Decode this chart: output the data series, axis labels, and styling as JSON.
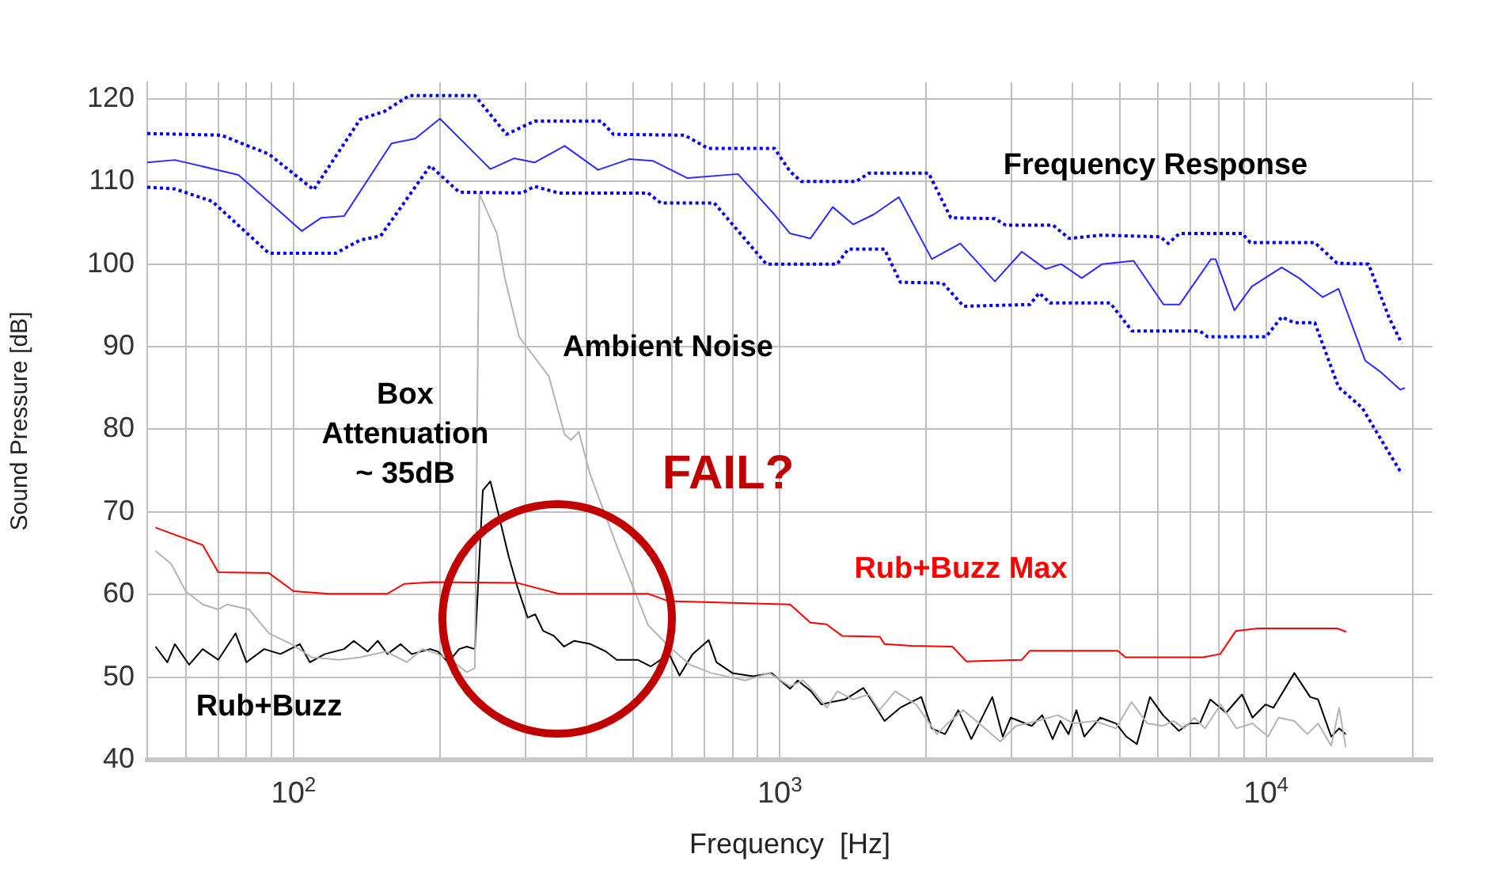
{
  "chart_data": {
    "type": "line",
    "xlabel": "Frequency  [Hz]",
    "ylabel": "Sound Pressure [dB]",
    "log": "x",
    "grid": true,
    "legend": false,
    "marker": "none",
    "xlim": [
      50,
      22000
    ],
    "ylim": [
      40,
      122
    ],
    "xticks": [
      {
        "value": 60,
        "label": null
      },
      {
        "value": 70,
        "label": null
      },
      {
        "value": 80,
        "label": null
      },
      {
        "value": 90,
        "label": null
      },
      {
        "value": 100,
        "label": "10$^{2}$"
      },
      {
        "value": 200,
        "label": null
      },
      {
        "value": 300,
        "label": null
      },
      {
        "value": 400,
        "label": null
      },
      {
        "value": 500,
        "label": null
      },
      {
        "value": 600,
        "label": null
      },
      {
        "value": 700,
        "label": null
      },
      {
        "value": 800,
        "label": null
      },
      {
        "value": 900,
        "label": null
      },
      {
        "value": 1000,
        "label": "10$^{3}$"
      },
      {
        "value": 2000,
        "label": null
      },
      {
        "value": 3000,
        "label": null
      },
      {
        "value": 4000,
        "label": null
      },
      {
        "value": 5000,
        "label": null
      },
      {
        "value": 6000,
        "label": null
      },
      {
        "value": 7000,
        "label": null
      },
      {
        "value": 8000,
        "label": null
      },
      {
        "value": 9000,
        "label": null
      },
      {
        "value": 10000,
        "label": "10$^{4}$"
      },
      {
        "value": 20000,
        "label": null
      }
    ],
    "yticks": [
      40,
      50,
      60,
      70,
      80,
      90,
      100,
      110,
      120
    ],
    "series": [
      {
        "color": "#0000ff",
        "line_style": "dotted",
        "x": [
          50,
          71,
          89,
          110,
          137,
          154,
          173,
          236,
          274,
          313,
          429,
          455,
          637,
          712,
          975,
          1050,
          1107,
          1436,
          1525,
          2024,
          2247,
          2770,
          2917,
          3650,
          3935,
          4571,
          6063,
          6294,
          6637,
          8936,
          9282,
          12600,
          14000,
          16250,
          17910,
          19020
        ],
        "values": [
          115.8,
          115.6,
          113.3,
          109,
          117.5,
          118.5,
          120.4,
          120.4,
          115.7,
          117.3,
          117.3,
          115.7,
          115.6,
          114,
          114,
          111.2,
          110,
          110,
          111,
          111,
          105.6,
          105.5,
          104.7,
          104.7,
          103.1,
          103.5,
          103.3,
          102.5,
          103.7,
          103.7,
          102.6,
          102.6,
          100.1,
          100,
          93.5,
          90.4
        ]
      },
      {
        "color": "#2b2bff",
        "line_style": "solid",
        "x": [
          50,
          57,
          77,
          104,
          114,
          127,
          159,
          178,
          200,
          254,
          284,
          313,
          361,
          423,
          490,
          548,
          646,
          820,
          975,
          1050,
          1156,
          1285,
          1415,
          1560,
          1757,
          2054,
          2351,
          2770,
          3146,
          3519,
          3790,
          4178,
          4604,
          5342,
          6155,
          6637,
          7709,
          7874,
          8610,
          9354,
          10770,
          11690,
          13080,
          14100,
          16000,
          17240,
          18870,
          19290
        ],
        "values": [
          112.3,
          112.6,
          110.8,
          104,
          105.6,
          105.8,
          114.6,
          115.2,
          117.6,
          111.5,
          112.8,
          112.3,
          114.3,
          111.4,
          112.7,
          112.5,
          110.4,
          110.9,
          106,
          103.7,
          103.1,
          106.9,
          104.8,
          106,
          108.1,
          100.6,
          102.5,
          97.9,
          101.5,
          99.4,
          100,
          98.3,
          100,
          100.4,
          95.1,
          95.1,
          100.6,
          100.6,
          94.4,
          97.3,
          99.6,
          98.3,
          96,
          97,
          88.3,
          86.9,
          84.8,
          85
        ]
      },
      {
        "color": "#0000ff",
        "line_style": "dotted",
        "x": [
          50,
          57,
          68,
          89,
          122,
          137,
          151,
          191,
          219,
          295,
          313,
          351,
          536,
          569,
          733,
          938,
          1312,
          1383,
          1642,
          1770,
          2163,
          2387,
          3268,
          3416,
          3595,
          4780,
          5302,
          7308,
          7588,
          10000,
          10770,
          11430,
          12600,
          14100,
          15770,
          17510,
          19020
        ],
        "values": [
          109.3,
          109.1,
          107.6,
          101.3,
          101.3,
          102.9,
          103.4,
          111.9,
          108.7,
          108.6,
          109.4,
          108.6,
          108.6,
          107.4,
          107.4,
          100,
          100,
          101.8,
          101.8,
          97.8,
          97.7,
          94.9,
          95.1,
          96.5,
          95.3,
          95.3,
          91.9,
          91.9,
          91.2,
          91.2,
          93.6,
          92.9,
          92.9,
          85.1,
          82.6,
          78.1,
          74.6
        ]
      },
      {
        "name": "Rub+Buzz Max",
        "color": "#ff0000",
        "line_style": "solid",
        "x": [
          52,
          65,
          70,
          89,
          100,
          118,
          156,
          169,
          193,
          289,
          351,
          536,
          591,
          1050,
          1156,
          1247,
          1343,
          1606,
          1642,
          1866,
          2265,
          2421,
          3146,
          3268,
          4955,
          5140,
          7413,
          8050,
          8670,
          9630,
          14000,
          14620
        ],
        "values": [
          68.1,
          66,
          62.7,
          62.6,
          60.4,
          60.1,
          60.1,
          61.3,
          61.5,
          61.4,
          60.1,
          60.1,
          59.2,
          58.8,
          56.6,
          56.4,
          55,
          54.9,
          54,
          53.8,
          53.7,
          51.9,
          52.1,
          53.2,
          53.2,
          52.4,
          52.4,
          52.8,
          55.6,
          55.9,
          55.9,
          55.5
        ]
      },
      {
        "color": "#b4b4b4",
        "line_style": "solid",
        "x": [
          52,
          56,
          60,
          65,
          70,
          73,
          81,
          89,
          99,
          109,
          124,
          137,
          155,
          171,
          184,
          198,
          214,
          227,
          236,
          241,
          262,
          272,
          291,
          335,
          361,
          372,
          386,
          407,
          462,
          536,
          592,
          654,
          723,
          849,
          951,
          1050,
          1117,
          1189,
          1249,
          1313,
          1415,
          1525,
          1602,
          1727,
          1907,
          2106,
          2214,
          2385,
          2570,
          2839,
          3060,
          3380,
          3733,
          4023,
          4443,
          4914,
          5287,
          5698,
          6139,
          6452,
          6780,
          7125,
          7488,
          8069,
          8696,
          9378,
          10096,
          10617,
          11436,
          12159,
          12795,
          13620,
          14140,
          14590
        ],
        "values": [
          65.3,
          63.7,
          60.4,
          58.8,
          58.2,
          58.8,
          58.2,
          55.3,
          54,
          52.4,
          52.1,
          52.4,
          53.1,
          51.8,
          53.4,
          52.8,
          51.8,
          50.6,
          51.1,
          108.5,
          103.7,
          98.3,
          91.2,
          86.4,
          79.4,
          78.7,
          79.7,
          74.6,
          65.9,
          56.3,
          53.7,
          51.5,
          50.5,
          49.6,
          50.5,
          48.9,
          49.6,
          47.9,
          46.3,
          48.3,
          47.3,
          47.9,
          46,
          48.3,
          46.7,
          43.1,
          44.4,
          46,
          44.4,
          42.2,
          44.1,
          44.7,
          45.4,
          44.4,
          44.7,
          43.8,
          47,
          44.4,
          44.1,
          44.7,
          43.8,
          45.1,
          43.8,
          46.7,
          43.8,
          44.4,
          42.8,
          45.1,
          44.7,
          43.1,
          44.4,
          41.7,
          46.3,
          41.5
        ]
      },
      {
        "name": "Rub+Buzz",
        "color": "#000000",
        "line_style": "solid",
        "x": [
          52,
          55,
          57,
          61,
          65,
          70,
          76,
          80,
          87,
          94,
          103,
          108,
          116,
          127,
          133,
          142,
          149,
          156,
          166,
          175,
          191,
          198,
          208,
          219,
          227,
          236,
          245,
          254,
          267,
          277,
          288,
          303,
          314,
          326,
          343,
          360,
          378,
          408,
          439,
          462,
          510,
          543,
          592,
          622,
          662,
          714,
          741,
          799,
          882,
          962,
          1050,
          1089,
          1159,
          1218,
          1280,
          1362,
          1486,
          1563,
          1642,
          1769,
          1954,
          2054,
          2187,
          2328,
          2477,
          2736,
          2874,
          2985,
          3297,
          3465,
          3641,
          3778,
          3925,
          4074,
          4227,
          4560,
          4914,
          5163,
          5424,
          5771,
          6139,
          6620,
          6956,
          7308,
          7679,
          8279,
          8926,
          9378,
          9977,
          10355,
          11436,
          12323,
          12795,
          13620,
          14140,
          14590
        ],
        "values": [
          53.7,
          51.8,
          54,
          51.5,
          53.4,
          52.1,
          55.3,
          51.8,
          53.4,
          52.8,
          54,
          51.8,
          52.8,
          53.4,
          54.4,
          53.1,
          54.4,
          52.8,
          54,
          52.8,
          53.4,
          53.1,
          51.8,
          53.4,
          53.7,
          53.4,
          72.6,
          73.7,
          68.5,
          64.6,
          61.1,
          57.2,
          57.6,
          55.6,
          55,
          53.7,
          54.4,
          54,
          53.1,
          52.1,
          52.1,
          51.3,
          52.8,
          50.2,
          52.8,
          54.5,
          51.8,
          50.5,
          50.1,
          50.5,
          48.6,
          49.6,
          48.3,
          46.7,
          47,
          47.3,
          48.7,
          46.7,
          44.7,
          46.3,
          47.6,
          43.8,
          43.1,
          46,
          42.5,
          47.6,
          42.8,
          45.1,
          44.1,
          45.4,
          42.5,
          44.7,
          43.1,
          46,
          42.8,
          45.1,
          44.4,
          42.8,
          41.9,
          47.6,
          45.4,
          43.5,
          44.4,
          44.4,
          47.3,
          45.7,
          47.9,
          45.1,
          46.7,
          46.3,
          50.5,
          47.6,
          47.3,
          42.8,
          43.8,
          43.1
        ]
      }
    ],
    "annotations": [
      "Frequency Response",
      "Ambient Noise",
      "Box\nAttenuation\n~ 35dB",
      "FAIL?"
    ]
  }
}
